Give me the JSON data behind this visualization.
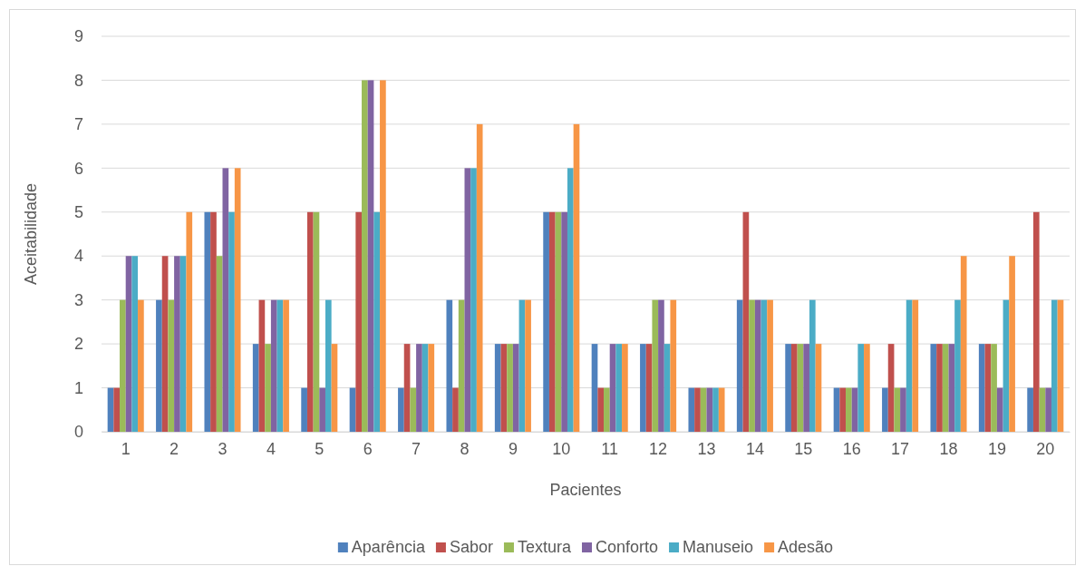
{
  "chart_data": {
    "type": "bar",
    "xlabel": "Pacientes",
    "ylabel": "Aceitabilidade",
    "categories": [
      "1",
      "2",
      "3",
      "4",
      "5",
      "6",
      "7",
      "8",
      "9",
      "10",
      "11",
      "12",
      "13",
      "14",
      "15",
      "16",
      "17",
      "18",
      "19",
      "20"
    ],
    "series": [
      {
        "name": "Aparência",
        "color": "#4f81bd",
        "values": [
          1,
          3,
          5,
          2,
          1,
          1,
          1,
          3,
          2,
          5,
          2,
          2,
          1,
          3,
          2,
          1,
          1,
          2,
          2,
          1
        ]
      },
      {
        "name": "Sabor",
        "color": "#c0504d",
        "values": [
          1,
          4,
          5,
          3,
          5,
          5,
          2,
          1,
          2,
          5,
          1,
          2,
          1,
          5,
          2,
          1,
          2,
          2,
          2,
          5
        ]
      },
      {
        "name": "Textura",
        "color": "#9bbb59",
        "values": [
          3,
          3,
          4,
          2,
          5,
          8,
          1,
          3,
          2,
          5,
          1,
          3,
          1,
          3,
          2,
          1,
          1,
          2,
          2,
          1
        ]
      },
      {
        "name": "Conforto",
        "color": "#8064a2",
        "values": [
          4,
          4,
          6,
          3,
          1,
          8,
          2,
          6,
          2,
          5,
          2,
          3,
          1,
          3,
          2,
          1,
          1,
          2,
          1,
          1
        ]
      },
      {
        "name": "Manuseio",
        "color": "#4bacc6",
        "values": [
          4,
          4,
          5,
          3,
          3,
          5,
          2,
          6,
          3,
          6,
          2,
          2,
          1,
          3,
          3,
          2,
          3,
          3,
          3,
          3
        ]
      },
      {
        "name": "Adesão",
        "color": "#f79646",
        "values": [
          3,
          5,
          6,
          3,
          2,
          8,
          2,
          7,
          3,
          7,
          2,
          3,
          1,
          3,
          2,
          2,
          3,
          4,
          4,
          3
        ]
      }
    ],
    "ylim": [
      0,
      9
    ],
    "yticks": [
      0,
      1,
      2,
      3,
      4,
      5,
      6,
      7,
      8,
      9
    ],
    "grid": "y",
    "legend": "bottom"
  }
}
